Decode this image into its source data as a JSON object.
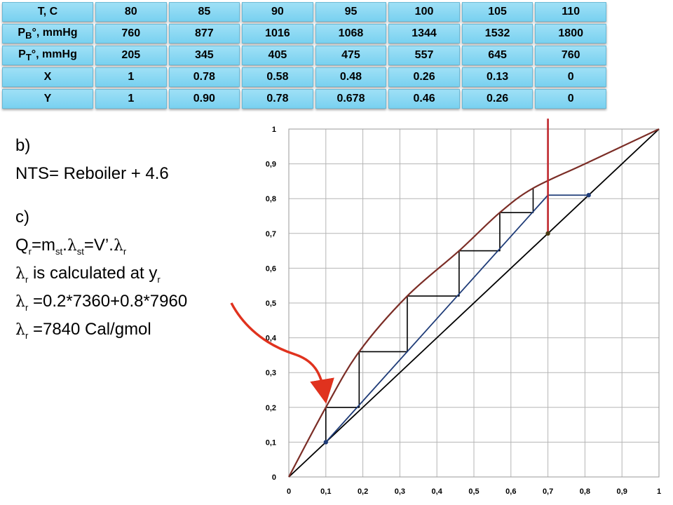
{
  "table": {
    "header": {
      "label": "T, C",
      "values": [
        "80",
        "85",
        "90",
        "95",
        "100",
        "105",
        "110"
      ]
    },
    "rows": [
      {
        "label_main": "P",
        "label_sub": "B",
        "label_tail": "°, mmHg",
        "values": [
          "760",
          "877",
          "1016",
          "1068",
          "1344",
          "1532",
          "1800"
        ]
      },
      {
        "label_main": "P",
        "label_sub": "T",
        "label_tail": "°, mmHg",
        "values": [
          "205",
          "345",
          "405",
          "475",
          "557",
          "645",
          "760"
        ]
      },
      {
        "label_main": "X",
        "label_sub": "",
        "label_tail": "",
        "values": [
          "1",
          "0.78",
          "0.58",
          "0.48",
          "0.26",
          "0.13",
          "0"
        ]
      },
      {
        "label_main": "Y",
        "label_sub": "",
        "label_tail": "",
        "values": [
          "1",
          "0.90",
          "0.78",
          "0.678",
          "0.46",
          "0.26",
          "0"
        ]
      }
    ]
  },
  "answers": {
    "b_label": "b)",
    "nts": "NTS= Reboiler + 4.6",
    "c_label": "c)",
    "q_main": "Q",
    "sub_r": "r",
    "sub_st": "st",
    "q_eq": "=m",
    "q_dot": ".",
    "q_eq2": "=V’.",
    "lambda": "λ",
    "lambda_calc_text": " is calculated at y",
    "lambda_expr": " =0.2*7360+0.8*7960",
    "lambda_value": " =7840 Cal/gmol"
  },
  "colors": {
    "equilibrium": "#7b2d26",
    "operating": "#1f3c78",
    "diagonal": "#000000",
    "feed_line": "#c0272d",
    "arrow": "#e0321e",
    "grid": "#b5b5b5"
  },
  "chart_data": {
    "type": "line",
    "x_ticks": [
      "0",
      "0,1",
      "0,2",
      "0,3",
      "0,4",
      "0,5",
      "0,6",
      "0,7",
      "0,8",
      "0,9",
      "1"
    ],
    "y_ticks": [
      "0",
      "0,1",
      "0,2",
      "0,3",
      "0,4",
      "0,5",
      "0,6",
      "0,7",
      "0,8",
      "0,9",
      "1"
    ],
    "xlim": [
      0,
      1
    ],
    "ylim": [
      0,
      1
    ],
    "grid": true,
    "series": [
      {
        "role": "equilibrium",
        "x": [
          0,
          0.1,
          0.19,
          0.32,
          0.46,
          0.57,
          0.66,
          0.8,
          1.0
        ],
        "y": [
          0,
          0.2,
          0.36,
          0.52,
          0.65,
          0.76,
          0.83,
          0.9,
          1.0
        ]
      },
      {
        "role": "diagonal",
        "x": [
          0,
          1
        ],
        "y": [
          0,
          1
        ]
      },
      {
        "role": "operating",
        "x": [
          0.1,
          0.7,
          0.81
        ],
        "y": [
          0.1,
          0.81,
          0.81
        ]
      },
      {
        "role": "stairs",
        "x": [
          0.1,
          0.1,
          0.19,
          0.19,
          0.32,
          0.32,
          0.46,
          0.46,
          0.57,
          0.57,
          0.66,
          0.66
        ],
        "y": [
          0.1,
          0.2,
          0.2,
          0.36,
          0.36,
          0.52,
          0.52,
          0.65,
          0.65,
          0.76,
          0.76,
          0.83
        ]
      },
      {
        "role": "feed_line",
        "x": [
          0.7,
          0.7
        ],
        "y": [
          0.7,
          1.03
        ]
      }
    ],
    "points": [
      {
        "x": 0.1,
        "y": 0.1
      },
      {
        "x": 0.7,
        "y": 0.7
      },
      {
        "x": 0.81,
        "y": 0.81
      }
    ]
  }
}
